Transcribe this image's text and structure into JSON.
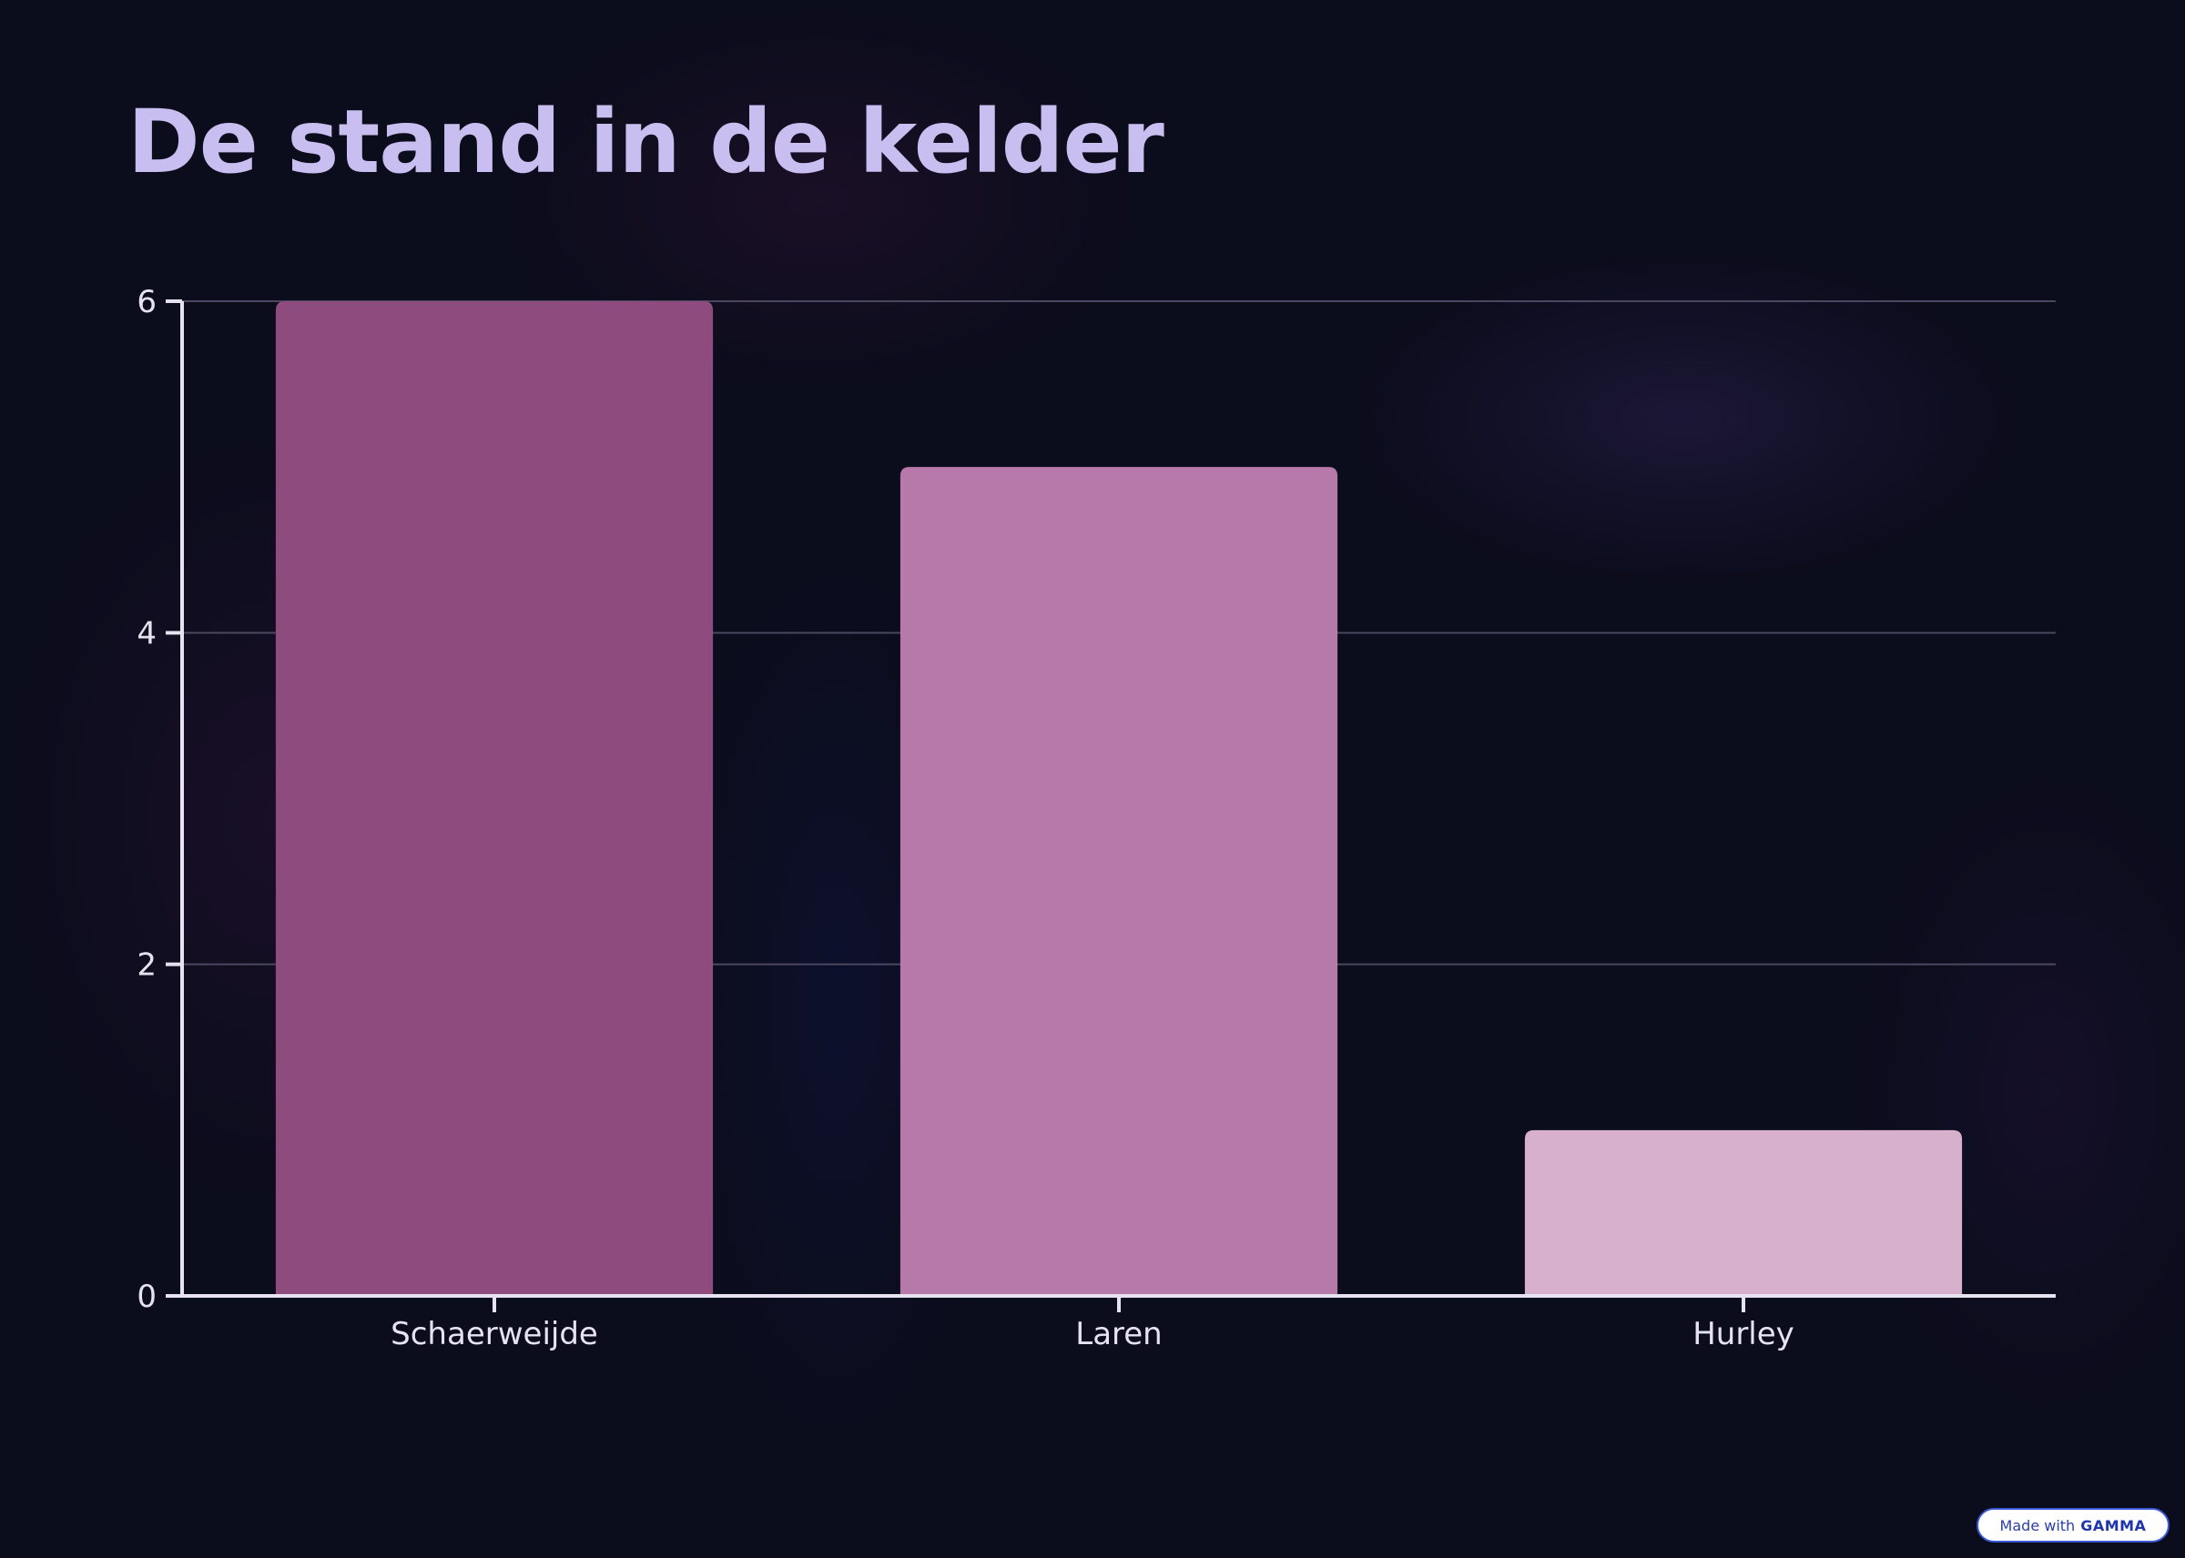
{
  "title": "De stand in de kelder",
  "badge": {
    "prefix": "Made with",
    "brand": "GAMMA"
  },
  "colors": {
    "title": "#c8bff0",
    "axis": "#e6e2f2",
    "grid": "#4a4860",
    "bars": [
      "#8e4c7e",
      "#b779a9",
      "#d6b0cd"
    ]
  },
  "chart_data": {
    "type": "bar",
    "categories": [
      "Schaerweijde",
      "Laren",
      "Hurley"
    ],
    "values": [
      6,
      5,
      1
    ],
    "ylim": [
      0,
      6
    ],
    "yticks": [
      0,
      2,
      4,
      6
    ],
    "grid": true,
    "xlabel": "",
    "ylabel": ""
  }
}
